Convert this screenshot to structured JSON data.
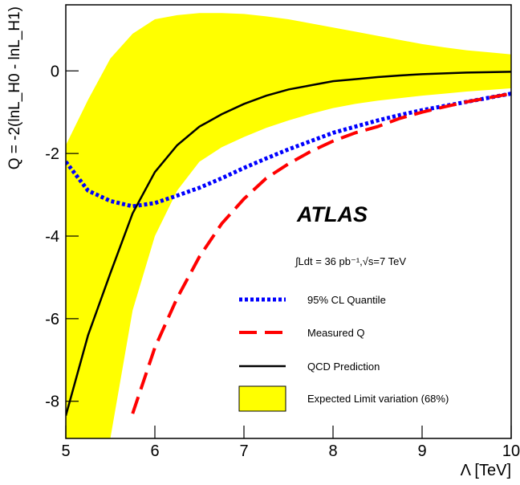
{
  "chart_data": {
    "type": "line",
    "title": "ATLAS",
    "subtitle": "∫Ldt = 36 pb⁻¹,√s=7 TeV",
    "x_label": "Λ [TeV]",
    "y_label": "Q = -2(lnL_H0 - lnL_H1)",
    "xlim": [
      5,
      10
    ],
    "ylim": [
      -8.9,
      1.6
    ],
    "xticks": [
      5,
      6,
      7,
      8,
      9,
      10
    ],
    "yticks": [
      -8,
      -6,
      -4,
      -2,
      0
    ],
    "x": [
      5,
      5.25,
      5.5,
      5.75,
      6,
      6.25,
      6.5,
      6.75,
      7,
      7.25,
      7.5,
      7.75,
      8,
      8.25,
      8.5,
      8.75,
      9,
      9.25,
      9.5,
      9.75,
      10
    ],
    "band": {
      "name": "Expected Limit variation (68%)",
      "color": "#ffff00",
      "upper": [
        -1.8,
        -0.7,
        0.3,
        0.9,
        1.25,
        1.35,
        1.4,
        1.4,
        1.38,
        1.32,
        1.25,
        1.15,
        1.05,
        0.95,
        0.85,
        0.75,
        0.65,
        0.57,
        0.5,
        0.45,
        0.4
      ],
      "lower": [
        -8.9,
        -8.9,
        -8.9,
        -5.8,
        -4.0,
        -2.9,
        -2.2,
        -1.85,
        -1.6,
        -1.38,
        -1.2,
        -1.04,
        -0.9,
        -0.8,
        -0.72,
        -0.66,
        -0.6,
        -0.55,
        -0.5,
        -0.46,
        -0.42
      ]
    },
    "series": [
      {
        "name": "95% CL Quantile",
        "color": "#0000ff",
        "style": "dotted",
        "values": [
          -2.2,
          -2.9,
          -3.15,
          -3.28,
          -3.2,
          -3.02,
          -2.83,
          -2.6,
          -2.35,
          -2.12,
          -1.9,
          -1.7,
          -1.5,
          -1.35,
          -1.2,
          -1.07,
          -0.95,
          -0.85,
          -0.75,
          -0.65,
          -0.55
        ]
      },
      {
        "name": "Measured Q",
        "color": "#ff0000",
        "style": "dashed",
        "values": [
          null,
          null,
          null,
          -8.3,
          -6.7,
          -5.5,
          -4.5,
          -3.7,
          -3.1,
          -2.6,
          -2.25,
          -1.95,
          -1.7,
          -1.5,
          -1.35,
          -1.15,
          -1.0,
          -0.87,
          -0.75,
          -0.65,
          -0.55
        ]
      },
      {
        "name": "QCD Prediction",
        "color": "#000000",
        "style": "solid",
        "values": [
          -8.35,
          -6.4,
          -4.9,
          -3.45,
          -2.45,
          -1.8,
          -1.35,
          -1.05,
          -0.8,
          -0.6,
          -0.45,
          -0.35,
          -0.25,
          -0.2,
          -0.15,
          -0.11,
          -0.08,
          -0.06,
          -0.04,
          -0.03,
          -0.02
        ]
      }
    ]
  }
}
